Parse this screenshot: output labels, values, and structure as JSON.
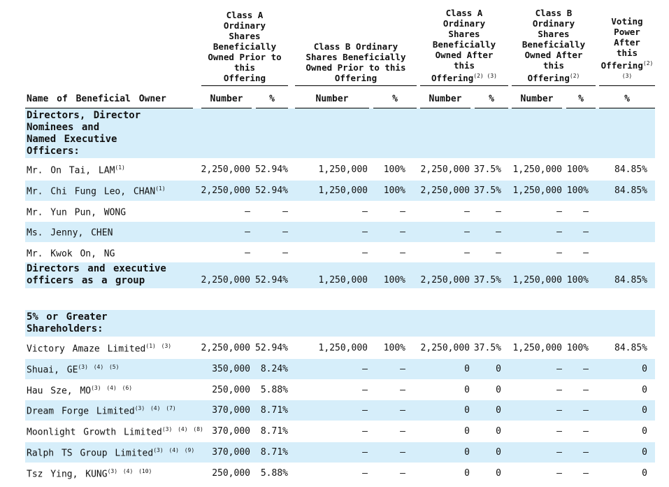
{
  "header": {
    "col_a_prior": "Class A\nOrdinary\nShares\nBeneficially\nOwned Prior to\nthis\nOffering",
    "col_b_prior": "Class B Ordinary\nShares Beneficially\nOwned Prior to this\nOffering",
    "col_a_after": "Class A\nOrdinary\nShares\nBeneficially\nOwned After\nthis\nOffering",
    "col_a_after_sup": "(2) (3)",
    "col_b_after": "Class B\nOrdinary\nShares\nBeneficially\nOwned After\nthis\nOffering",
    "col_b_after_sup": "(2)",
    "voting": "Voting\nPower\nAfter\nthis\nOffering",
    "voting_sup": "(2)",
    "voting_sup2": "(3)"
  },
  "columns": {
    "name": "Name of Beneficial Owner",
    "number": "Number",
    "percent": "%"
  },
  "sections": {
    "directors_title": "Directors, Director\n  Nominees and\n  Named Executive\n  Officers:",
    "group_title": "Directors and executive\n  officers as a group",
    "shareholders_title": "5% or Greater\n  Shareholders:"
  },
  "directors": [
    {
      "name": "Mr. On Tai, LAM",
      "sup": "(1)",
      "a_num": "2,250,000",
      "a_pct": "52.94%",
      "b_num": "1,250,000",
      "b_pct": "100%",
      "aa_num": "2,250,000",
      "aa_pct": "37.5%",
      "ba_num": "1,250,000",
      "ba_pct": "100%",
      "vote": "84.85%"
    },
    {
      "name": "Mr. Chi Fung Leo, CHAN",
      "sup": "(1)",
      "a_num": "2,250,000",
      "a_pct": "52.94%",
      "b_num": "1,250,000",
      "b_pct": "100%",
      "aa_num": "2,250,000",
      "aa_pct": "37.5%",
      "ba_num": "1,250,000",
      "ba_pct": "100%",
      "vote": "84.85%"
    },
    {
      "name": "Mr. Yun Pun, WONG",
      "sup": "",
      "a_num": "—",
      "a_pct": "—",
      "b_num": "—",
      "b_pct": "—",
      "aa_num": "—",
      "aa_pct": "—",
      "ba_num": "—",
      "ba_pct": "—",
      "vote": ""
    },
    {
      "name": "Ms. Jenny, CHEN",
      "sup": "",
      "a_num": "—",
      "a_pct": "—",
      "b_num": "—",
      "b_pct": "—",
      "aa_num": "—",
      "aa_pct": "—",
      "ba_num": "—",
      "ba_pct": "—",
      "vote": ""
    },
    {
      "name": "Mr. Kwok On, NG",
      "sup": "",
      "a_num": "—",
      "a_pct": "—",
      "b_num": "—",
      "b_pct": "—",
      "aa_num": "—",
      "aa_pct": "—",
      "ba_num": "—",
      "ba_pct": "—",
      "vote": ""
    }
  ],
  "group": {
    "a_num": "2,250,000",
    "a_pct": "52.94%",
    "b_num": "1,250,000",
    "b_pct": "100%",
    "aa_num": "2,250,000",
    "aa_pct": "37.5%",
    "ba_num": "1,250,000",
    "ba_pct": "100%",
    "vote": "84.85%"
  },
  "shareholders": [
    {
      "name": "Victory Amaze Limited",
      "sup": "(1) (3)",
      "a_num": "2,250,000",
      "a_pct": "52.94%",
      "b_num": "1,250,000",
      "b_pct": "100%",
      "aa_num": "2,250,000",
      "aa_pct": "37.5%",
      "ba_num": "1,250,000",
      "ba_pct": "100%",
      "vote": "84.85%"
    },
    {
      "name": "Shuai, GE",
      "sup": "(3) (4) (5)",
      "a_num": "350,000",
      "a_pct": "8.24%",
      "b_num": "—",
      "b_pct": "—",
      "aa_num": "0",
      "aa_pct": "0",
      "ba_num": "—",
      "ba_pct": "—",
      "vote": "0"
    },
    {
      "name": "Hau Sze, MO",
      "sup": "(3) (4) (6)",
      "a_num": "250,000",
      "a_pct": "5.88%",
      "b_num": "—",
      "b_pct": "—",
      "aa_num": "0",
      "aa_pct": "0",
      "ba_num": "—",
      "ba_pct": "—",
      "vote": "0"
    },
    {
      "name": "Dream Forge Limited",
      "sup": "(3) (4) (7)",
      "a_num": "370,000",
      "a_pct": "8.71%",
      "b_num": "—",
      "b_pct": "—",
      "aa_num": "0",
      "aa_pct": "0",
      "ba_num": "—",
      "ba_pct": "—",
      "vote": "0"
    },
    {
      "name": "Moonlight Growth Limited",
      "sup": "(3) (4) (8)",
      "a_num": "370,000",
      "a_pct": "8.71%",
      "b_num": "—",
      "b_pct": "—",
      "aa_num": "0",
      "aa_pct": "0",
      "ba_num": "—",
      "ba_pct": "—",
      "vote": "0"
    },
    {
      "name": "Ralph TS Group Limited",
      "sup": "(3) (4) (9)",
      "a_num": "370,000",
      "a_pct": "8.71%",
      "b_num": "—",
      "b_pct": "—",
      "aa_num": "0",
      "aa_pct": "0",
      "ba_num": "—",
      "ba_pct": "—",
      "vote": "0"
    },
    {
      "name": "Tsz Ying, KUNG",
      "sup": "(3) (4) (10)",
      "a_num": "250,000",
      "a_pct": "5.88%",
      "b_num": "—",
      "b_pct": "—",
      "aa_num": "0",
      "aa_pct": "0",
      "ba_num": "—",
      "ba_pct": "—",
      "vote": "0"
    }
  ],
  "colors": {
    "row_highlight": "#d6eefa"
  }
}
